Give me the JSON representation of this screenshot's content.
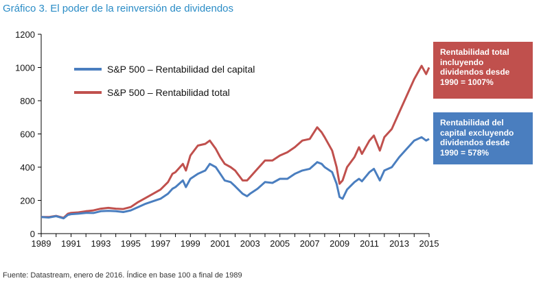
{
  "title": "Gráfico 3. El poder de la reinversión de dividendos",
  "source": "Fuente: Datastream, enero de 2016. Índice en base 100 a final de 1989",
  "colors": {
    "title": "#2a8cc6",
    "capital": "#4a7ebf",
    "total": "#c0504d"
  },
  "annotations": {
    "total": "Rentabilidad total incluyendo dividendos desde 1990 = 1007%",
    "capital": "Rentabilidad del capital excluyendo dividendos desde 1990 = 578%"
  },
  "chart_data": {
    "type": "line",
    "title": "Gráfico 3. El poder de la reinversión de dividendos",
    "xlabel": "",
    "ylabel": "",
    "xlim": [
      1989,
      2015
    ],
    "ylim": [
      0,
      1200
    ],
    "x_ticks": [
      "1989",
      "1991",
      "1993",
      "1995",
      "1997",
      "1999",
      "2001",
      "2003",
      "2005",
      "2007",
      "2009",
      "2011",
      "2013",
      "2015"
    ],
    "y_ticks": [
      "0",
      "200",
      "400",
      "600",
      "800",
      "1000",
      "1200"
    ],
    "grid": false,
    "legend_position": "top-left",
    "series": [
      {
        "name": "S&P 500 – Rentabilidad del capital",
        "color": "#4a7ebf",
        "x": [
          1989.0,
          1989.5,
          1990.0,
          1990.5,
          1990.8,
          1991.0,
          1991.5,
          1992.0,
          1992.5,
          1993.0,
          1993.5,
          1994.0,
          1994.5,
          1995.0,
          1995.5,
          1996.0,
          1996.5,
          1997.0,
          1997.5,
          1997.8,
          1998.0,
          1998.5,
          1998.7,
          1999.0,
          1999.5,
          2000.0,
          2000.3,
          2000.7,
          2001.0,
          2001.3,
          2001.7,
          2002.0,
          2002.5,
          2002.8,
          2003.0,
          2003.5,
          2004.0,
          2004.5,
          2005.0,
          2005.5,
          2006.0,
          2006.5,
          2007.0,
          2007.5,
          2007.8,
          2008.0,
          2008.5,
          2008.8,
          2009.0,
          2009.2,
          2009.5,
          2010.0,
          2010.3,
          2010.5,
          2011.0,
          2011.3,
          2011.7,
          2012.0,
          2012.5,
          2013.0,
          2013.5,
          2014.0,
          2014.5,
          2014.8,
          2015.0
        ],
        "values": [
          100,
          97,
          105,
          92,
          113,
          117,
          120,
          125,
          124,
          135,
          137,
          135,
          130,
          140,
          160,
          180,
          195,
          210,
          240,
          270,
          280,
          320,
          280,
          330,
          360,
          380,
          420,
          400,
          360,
          320,
          310,
          285,
          240,
          225,
          240,
          270,
          310,
          305,
          330,
          330,
          360,
          380,
          390,
          430,
          420,
          400,
          370,
          300,
          220,
          210,
          265,
          310,
          330,
          315,
          370,
          390,
          320,
          380,
          400,
          460,
          510,
          560,
          580,
          560,
          570
        ]
      },
      {
        "name": "S&P 500 – Rentabilidad total",
        "color": "#c0504d",
        "x": [
          1989.0,
          1989.5,
          1990.0,
          1990.5,
          1990.8,
          1991.0,
          1991.5,
          1992.0,
          1992.5,
          1993.0,
          1993.5,
          1994.0,
          1994.5,
          1995.0,
          1995.5,
          1996.0,
          1996.5,
          1997.0,
          1997.5,
          1997.8,
          1998.0,
          1998.5,
          1998.7,
          1999.0,
          1999.5,
          2000.0,
          2000.3,
          2000.7,
          2001.0,
          2001.3,
          2001.7,
          2002.0,
          2002.5,
          2002.8,
          2003.0,
          2003.5,
          2004.0,
          2004.5,
          2005.0,
          2005.5,
          2006.0,
          2006.5,
          2007.0,
          2007.5,
          2007.8,
          2008.0,
          2008.5,
          2008.8,
          2009.0,
          2009.2,
          2009.5,
          2010.0,
          2010.3,
          2010.5,
          2011.0,
          2011.3,
          2011.7,
          2012.0,
          2012.5,
          2013.0,
          2013.5,
          2014.0,
          2014.5,
          2014.8,
          2015.0
        ],
        "values": [
          100,
          100,
          107,
          95,
          120,
          125,
          128,
          135,
          140,
          150,
          155,
          150,
          148,
          160,
          190,
          215,
          240,
          265,
          310,
          360,
          370,
          420,
          380,
          470,
          530,
          540,
          560,
          510,
          460,
          420,
          400,
          380,
          320,
          320,
          340,
          390,
          440,
          440,
          470,
          490,
          520,
          560,
          570,
          640,
          610,
          580,
          500,
          400,
          300,
          320,
          400,
          460,
          520,
          480,
          560,
          590,
          500,
          580,
          630,
          730,
          830,
          930,
          1010,
          960,
          1000
        ]
      }
    ]
  }
}
